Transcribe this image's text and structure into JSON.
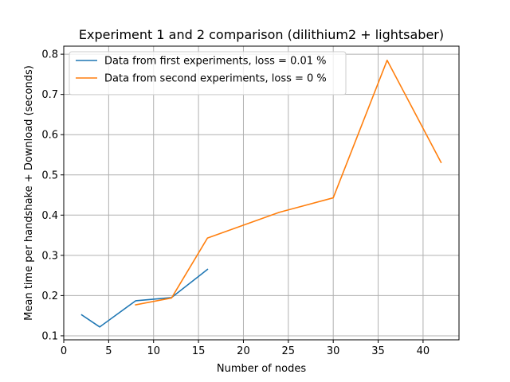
{
  "chart_data": {
    "type": "line",
    "title": "Experiment 1 and 2 comparison (dilithium2 + lightsaber)",
    "xlabel": "Number of nodes",
    "ylabel": "Mean time per handshake + Download (seconds)",
    "xlim": [
      0,
      44
    ],
    "ylim": [
      0.09,
      0.82
    ],
    "xticks": [
      0,
      5,
      10,
      15,
      20,
      25,
      30,
      35,
      40
    ],
    "yticks": [
      0.1,
      0.2,
      0.3,
      0.4,
      0.5,
      0.6,
      0.7,
      0.8
    ],
    "xtick_labels": [
      "0",
      "5",
      "10",
      "15",
      "20",
      "25",
      "30",
      "35",
      "40"
    ],
    "ytick_labels": [
      "0.1",
      "0.2",
      "0.3",
      "0.4",
      "0.5",
      "0.6",
      "0.7",
      "0.8"
    ],
    "grid": true,
    "legend_position": "top-left",
    "series": [
      {
        "name": "Data from first experiments, loss = 0.01 %",
        "color": "#1f77b4",
        "x": [
          2,
          4,
          8,
          12,
          16
        ],
        "y": [
          0.152,
          0.122,
          0.187,
          0.195,
          0.265
        ]
      },
      {
        "name": "Data from second experiments, loss = 0 %",
        "color": "#ff7f0e",
        "x": [
          8,
          12,
          16,
          24,
          30,
          36,
          42
        ],
        "y": [
          0.177,
          0.194,
          0.343,
          0.407,
          0.443,
          0.785,
          0.531
        ]
      }
    ]
  }
}
